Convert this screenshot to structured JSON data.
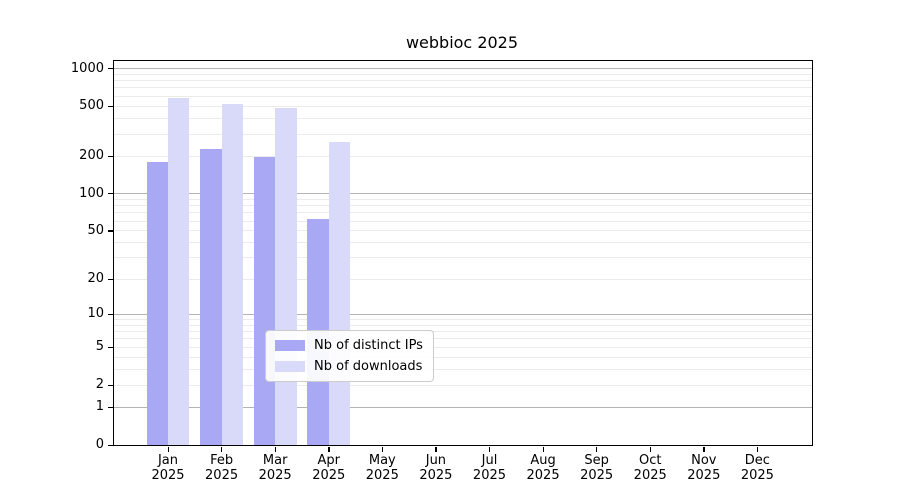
{
  "figure": {
    "title": "webbioc 2025"
  },
  "chart_data": {
    "type": "bar",
    "title": "webbioc 2025",
    "categories": [
      "Jan",
      "Feb",
      "Mar",
      "Apr",
      "May",
      "Jun",
      "Jul",
      "Aug",
      "Sep",
      "Oct",
      "Nov",
      "Dec"
    ],
    "category_year": "2025",
    "series": [
      {
        "name": "Nb of distinct IPs",
        "color": "#a8a8f5",
        "values": [
          180,
          228,
          197,
          62,
          0,
          0,
          0,
          0,
          0,
          0,
          0,
          0
        ]
      },
      {
        "name": "Nb of downloads",
        "color": "#d9d9fa",
        "values": [
          585,
          520,
          487,
          260,
          0,
          0,
          0,
          0,
          0,
          0,
          0,
          0
        ]
      }
    ],
    "y_scale": "log1p",
    "ylim": [
      0,
      1160
    ],
    "y_ticks": [
      0,
      1,
      2,
      5,
      10,
      20,
      50,
      100,
      200,
      500,
      1000
    ],
    "grid_major_values": [
      1,
      10,
      100,
      1000
    ],
    "grid_minor_values": [
      2,
      3,
      4,
      5,
      6,
      7,
      8,
      9,
      20,
      30,
      40,
      50,
      60,
      70,
      80,
      90,
      200,
      300,
      400,
      500,
      600,
      700,
      800,
      900
    ],
    "legend_position": "lower-center",
    "colors": {
      "grid_major": "#b3b3b3",
      "grid_minor": "#ebebeb",
      "spine": "#000000",
      "background": "#ffffff"
    }
  }
}
